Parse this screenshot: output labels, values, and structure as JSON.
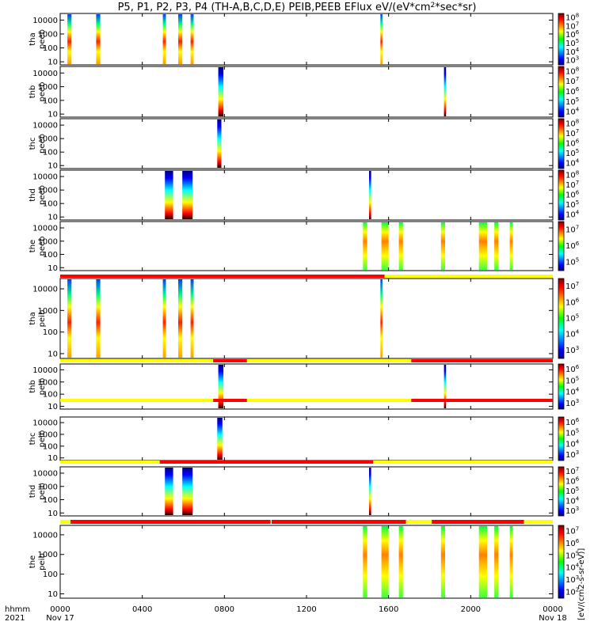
{
  "chart_data": {
    "type": "heatmap",
    "title": "P5, P1, P2, P3, P4 (TH-A,B,C,D,E) PEIB,PEEB EFlux eV/(eV*cm²*sec*sr)",
    "x_axis": {
      "unit_label": "hhmm",
      "year_label": "2021",
      "range": [
        "0000",
        "0000"
      ],
      "ticks": [
        {
          "h": 0,
          "label": "0000",
          "date": "Nov 17"
        },
        {
          "h": 4,
          "label": "0400",
          "date": ""
        },
        {
          "h": 8,
          "label": "0800",
          "date": ""
        },
        {
          "h": 12,
          "label": "1200",
          "date": ""
        },
        {
          "h": 16,
          "label": "1600",
          "date": ""
        },
        {
          "h": 20,
          "label": "2000",
          "date": ""
        },
        {
          "h": 24,
          "label": "0000",
          "date": "Nov 18"
        }
      ]
    },
    "y_axis": {
      "scale": "log",
      "range": [
        6,
        30000
      ],
      "ticks": [
        "10",
        "100",
        "1000",
        "10000"
      ]
    },
    "colorbar_label": "eV/(cm²-s-sr-eV)",
    "colorbar_label_alt": "[eV/(cm2-s-sr-eV)]",
    "panels": [
      {
        "label1": "tha",
        "label2": "peeb",
        "cbar": [
          3,
          8
        ],
        "bursts": [
          [
            0.35,
            0.55
          ],
          [
            1.75,
            1.95
          ],
          [
            5.0,
            5.15
          ],
          [
            5.75,
            5.95
          ],
          [
            6.35,
            6.5
          ],
          [
            15.6,
            15.7
          ]
        ]
      },
      {
        "label1": "thb",
        "label2": "peeb",
        "cbar": [
          4,
          8
        ],
        "bursts": [
          [
            7.7,
            7.95
          ],
          [
            18.7,
            18.8
          ]
        ]
      },
      {
        "label1": "thc",
        "label2": "peeb",
        "cbar": [
          4,
          8
        ],
        "bursts": [
          [
            7.65,
            7.85
          ]
        ]
      },
      {
        "label1": "thd",
        "label2": "peeb",
        "cbar": [
          4,
          8
        ],
        "bursts": [
          [
            5.1,
            5.5
          ],
          [
            5.95,
            6.45
          ],
          [
            15.05,
            15.15
          ]
        ]
      },
      {
        "label1": "the",
        "label2": "peeb",
        "cbar": [
          5,
          7
        ],
        "bursts": [
          [
            14.75,
            14.95
          ],
          [
            15.65,
            16.0
          ],
          [
            16.5,
            16.7
          ],
          [
            18.55,
            18.75
          ],
          [
            20.4,
            20.8
          ],
          [
            21.15,
            21.35
          ],
          [
            21.9,
            22.05
          ]
        ]
      },
      {
        "label1": "tha",
        "label2": "peib",
        "cbar": [
          3,
          7
        ],
        "bursts": [
          [
            0.35,
            0.55
          ],
          [
            1.75,
            1.95
          ],
          [
            5.0,
            5.15
          ],
          [
            5.75,
            5.95
          ],
          [
            6.35,
            6.5
          ],
          [
            15.6,
            15.7
          ]
        ]
      },
      {
        "label1": "thb",
        "label2": "peib",
        "cbar": [
          3,
          6
        ],
        "bursts": [
          [
            7.7,
            7.95
          ],
          [
            18.7,
            18.8
          ]
        ]
      },
      {
        "label1": "thc",
        "label2": "peib",
        "cbar": [
          3,
          6
        ],
        "bursts": [
          [
            7.65,
            7.9
          ]
        ]
      },
      {
        "label1": "thd",
        "label2": "peib",
        "cbar": [
          3,
          7
        ],
        "bursts": [
          [
            5.1,
            5.5
          ],
          [
            5.95,
            6.45
          ],
          [
            15.05,
            15.15
          ]
        ]
      },
      {
        "label1": "the",
        "label2": "peib",
        "cbar": [
          2,
          7
        ],
        "bursts": [
          [
            14.75,
            14.95
          ],
          [
            15.65,
            16.0
          ],
          [
            16.5,
            16.7
          ],
          [
            18.55,
            18.75
          ],
          [
            20.4,
            20.8
          ],
          [
            21.15,
            21.35
          ],
          [
            21.9,
            22.05
          ]
        ]
      }
    ],
    "mode_bars": [
      {
        "after_panel": 4,
        "segments": [
          [
            0,
            15.8,
            "red"
          ],
          [
            15.8,
            24,
            "yellow"
          ]
        ]
      },
      {
        "after_panel": 5,
        "segments": [
          [
            0,
            7.45,
            "yellow"
          ],
          [
            7.45,
            9.1,
            "red"
          ],
          [
            9.1,
            17.1,
            "yellow"
          ],
          [
            17.1,
            24,
            "red"
          ]
        ]
      },
      {
        "after_panel": 6,
        "segments": [
          [
            0,
            7.45,
            "yellow"
          ],
          [
            7.45,
            9.1,
            "red"
          ],
          [
            9.1,
            17.1,
            "yellow"
          ],
          [
            17.1,
            24,
            "red"
          ]
        ]
      },
      {
        "after_panel": 7,
        "segments": [
          [
            0,
            4.85,
            "yellow"
          ],
          [
            4.85,
            15.25,
            "red"
          ],
          [
            15.25,
            24,
            "yellow"
          ]
        ]
      },
      {
        "after_panel": 8,
        "segments": [
          [
            0,
            0.5,
            "yellow"
          ],
          [
            0.5,
            10.25,
            "red"
          ],
          [
            10.3,
            16.85,
            "red"
          ],
          [
            16.85,
            18.1,
            "yellow"
          ],
          [
            18.1,
            22.6,
            "red"
          ],
          [
            22.6,
            24,
            "yellow"
          ]
        ]
      }
    ],
    "colors": {
      "mode_red": "#ff0000",
      "mode_yellow": "#ffff00"
    }
  }
}
